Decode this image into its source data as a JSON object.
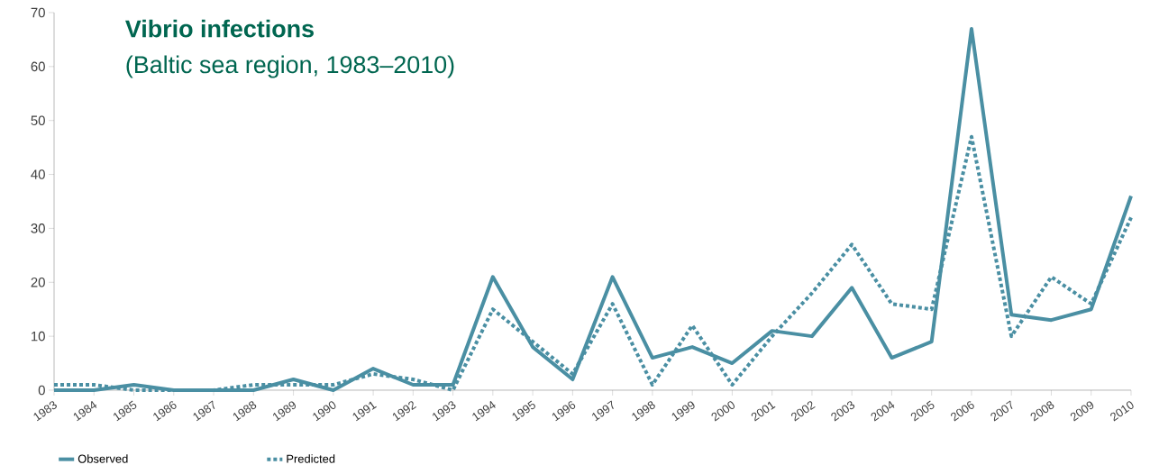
{
  "chart_data": {
    "type": "line",
    "title": "Vibrio infections",
    "subtitle": "(Baltic sea region, 1983–2010)",
    "categories": [
      "1983",
      "1984",
      "1985",
      "1986",
      "1987",
      "1988",
      "1989",
      "1990",
      "1991",
      "1992",
      "1993",
      "1994",
      "1995",
      "1996",
      "1997",
      "1998",
      "1999",
      "2000",
      "2001",
      "2002",
      "2003",
      "2004",
      "2005",
      "2006",
      "2007",
      "2008",
      "2009",
      "2010"
    ],
    "series": [
      {
        "name": "Observed",
        "color": "#4a8fa3",
        "line_style": "solid",
        "values": [
          0,
          0,
          1,
          0,
          0,
          0,
          2,
          0,
          4,
          1,
          1,
          21,
          8,
          2,
          21,
          6,
          8,
          5,
          11,
          10,
          19,
          6,
          9,
          67,
          14,
          13,
          15,
          36
        ]
      },
      {
        "name": "Predicted",
        "color": "#4a8fa3",
        "line_style": "dotted",
        "values": [
          1,
          1,
          0,
          0,
          0,
          1,
          1,
          1,
          3,
          2,
          0,
          15,
          9,
          3,
          16,
          1,
          12,
          1,
          10,
          18,
          27,
          16,
          15,
          47,
          10,
          21,
          16,
          32
        ]
      }
    ],
    "ylim": [
      0,
      70
    ],
    "yticks": [
      0,
      10,
      20,
      30,
      40,
      50,
      60,
      70
    ],
    "legend": "bottom"
  }
}
